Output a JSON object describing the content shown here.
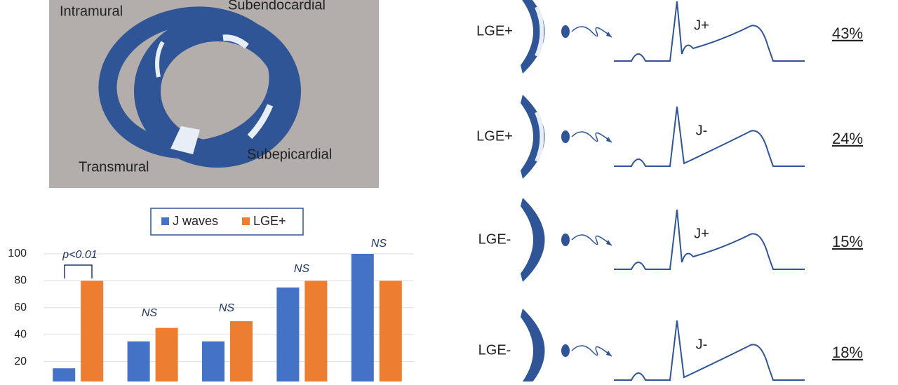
{
  "diagram": {
    "labels": [
      "Intramural",
      "Subendocardial",
      "Transmural",
      "Subepicardial"
    ]
  },
  "ecg_rows": [
    {
      "lge": "LGE+",
      "j": "J+",
      "percent": "43%"
    },
    {
      "lge": "LGE+",
      "j": "J-",
      "percent": "24%"
    },
    {
      "lge": "LGE-",
      "j": "J+",
      "percent": "15%"
    },
    {
      "lge": "LGE-",
      "j": "J-",
      "percent": "18%"
    }
  ],
  "chart_data": {
    "type": "bar",
    "categories": [
      null,
      null,
      null,
      null,
      null
    ],
    "series": [
      {
        "name": "J waves",
        "color": "#4472c4",
        "values": [
          15,
          35,
          35,
          75,
          100
        ]
      },
      {
        "name": "LGE+",
        "color": "#ed7d31",
        "values": [
          80,
          45,
          50,
          80,
          80
        ]
      }
    ],
    "ylim": [
      0,
      100
    ],
    "yticks": [
      20,
      40,
      60,
      80,
      100
    ],
    "grid": true,
    "legend": "top",
    "annotations": [
      "p<0.01",
      "NS",
      "NS",
      "NS",
      "NS"
    ]
  }
}
